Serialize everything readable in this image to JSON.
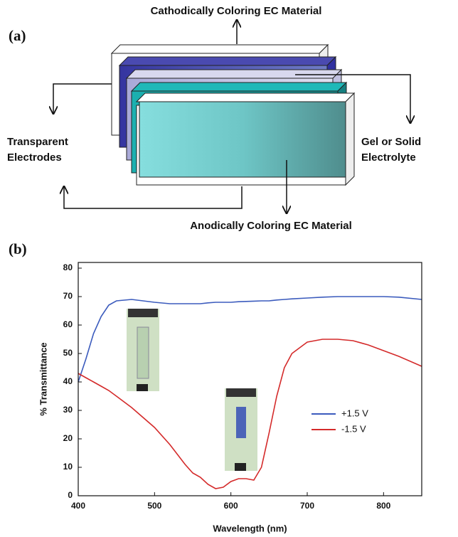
{
  "diagram": {
    "panel_label": "(a)",
    "top_label": "Cathodically Coloring EC Material",
    "left_label": [
      "Transparent",
      "Electrodes"
    ],
    "right_label": [
      "Gel or Solid",
      "Electrolyte"
    ],
    "bottom_label": "Anodically Coloring EC Material"
  },
  "chart_panel_label": "(b)",
  "chart_data": {
    "type": "line",
    "x_label": "Wavelength (nm)",
    "y_label": "% Transmittance",
    "x": [
      400,
      410,
      420,
      430,
      440,
      450,
      470,
      500,
      520,
      540,
      550,
      560,
      570,
      580,
      590,
      600,
      610,
      620,
      630,
      640,
      650,
      660,
      670,
      680,
      700,
      720,
      740,
      760,
      780,
      800,
      820,
      850
    ],
    "series": [
      {
        "name": "+1.5 V",
        "color": "#3b5bbd",
        "values": [
          40,
          48,
          57,
          63,
          67,
          68.5,
          69,
          68,
          67.5,
          67.5,
          67.5,
          67.5,
          67.8,
          68,
          68,
          68,
          68.2,
          68.3,
          68.4,
          68.5,
          68.5,
          68.8,
          69,
          69.2,
          69.5,
          69.8,
          70,
          70,
          70,
          70,
          69.8,
          69
        ]
      },
      {
        "name": "-1.5 V",
        "color": "#d42a2a",
        "values": [
          43,
          41.5,
          40,
          38.5,
          37,
          35,
          31,
          24,
          18,
          11,
          8,
          6.5,
          4,
          2.5,
          3,
          5,
          6,
          6,
          5.5,
          10,
          22,
          35,
          45,
          50,
          54,
          55,
          55,
          54.5,
          53,
          51,
          49,
          45.5
        ]
      }
    ],
    "xlim": [
      400,
      850
    ],
    "ylim": [
      0,
      82
    ],
    "xticks": [
      400,
      500,
      600,
      700,
      800
    ],
    "yticks": [
      0,
      10,
      20,
      30,
      40,
      50,
      60,
      70,
      80
    ],
    "legend": "right"
  }
}
